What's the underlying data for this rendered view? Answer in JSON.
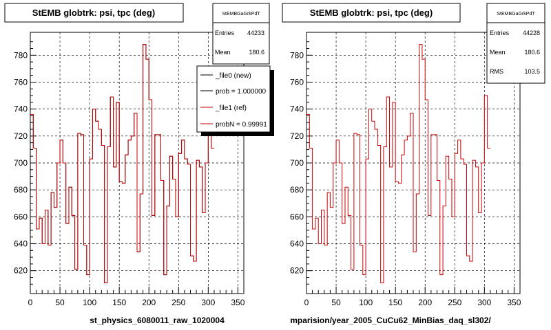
{
  "colors": {
    "background": "#ffffff",
    "frame": "#000000",
    "grid": "#000000",
    "series_new": "#000000",
    "series_ref": "#cc0000"
  },
  "left_panel": {
    "title": "StEMB globtrk: psi, tpc (deg)",
    "stats": {
      "name": "StEMBGaGrkPdT",
      "entries_label": "Entries",
      "entries_value": "44233",
      "mean_label": "Mean",
      "mean_value": "180.6"
    },
    "legend": {
      "entries": [
        "_file0 (new)",
        "prob = 1.000000",
        "_file1 (ref)",
        "probN = 0.99991"
      ]
    },
    "xlabel": "st_physics_6080011_raw_1020004"
  },
  "right_panel": {
    "title": "StEMB globtrk: psi, tpc (deg)",
    "stats": {
      "name": "StEMBGaGrkPdT",
      "entries_label": "Entries",
      "entries_value": "44228",
      "mean_label": "Mean",
      "mean_value": "180.6",
      "rms_label": "RMS",
      "rms_value": "103.5"
    },
    "xlabel": "mparision/year_2005_CuCu62_MinBias_daq_sl302/"
  },
  "chart_data": [
    {
      "type": "histogram",
      "title": "StEMB globtrk: psi, tpc (deg)",
      "xlabel": "st_physics_6080011_raw_1020004",
      "xlim": [
        0,
        360
      ],
      "ylim": [
        603,
        797
      ],
      "x_ticks": [
        0,
        50,
        100,
        150,
        200,
        250,
        300,
        350
      ],
      "y_ticks": [
        620,
        640,
        660,
        680,
        700,
        720,
        740,
        760,
        780
      ],
      "grid": true,
      "bin_width": 5,
      "legend_position": "top-right",
      "series": [
        {
          "name": "_file0 (new)",
          "values": [
            736,
            711,
            651,
            659,
            640,
            665,
            639,
            678,
            667,
            700,
            717,
            700,
            655,
            682,
            661,
            621,
            722,
            721,
            639,
            617,
            703,
            740,
            731,
            725,
            713,
            611,
            712,
            749,
            697,
            745,
            686,
            685,
            706,
            717,
            720,
            737,
            634,
            677,
            788,
            777,
            747,
            661,
            721,
            721,
            687,
            617,
            668,
            705,
            688,
            660,
            707,
            717,
            703,
            699,
            631,
            627,
            702,
            697,
            663,
            700,
            750,
            711
          ]
        },
        {
          "name": "_file1 (ref)",
          "values": [
            736,
            711,
            651,
            659,
            640,
            665,
            639,
            678,
            667,
            700,
            717,
            700,
            655,
            682,
            661,
            621,
            722,
            721,
            639,
            617,
            703,
            740,
            731,
            725,
            713,
            611,
            712,
            749,
            697,
            745,
            686,
            685,
            706,
            717,
            720,
            737,
            634,
            677,
            788,
            777,
            747,
            661,
            721,
            721,
            687,
            617,
            668,
            705,
            688,
            660,
            707,
            717,
            703,
            699,
            631,
            627,
            702,
            697,
            663,
            700,
            750,
            711
          ]
        }
      ]
    },
    {
      "type": "histogram",
      "title": "StEMB globtrk: psi, tpc (deg)",
      "xlabel": "mparision/year_2005_CuCu62_MinBias_daq_sl302/",
      "xlim": [
        0,
        360
      ],
      "ylim": [
        603,
        797
      ],
      "x_ticks": [
        0,
        50,
        100,
        150,
        200,
        250,
        300,
        350
      ],
      "y_ticks": [
        620,
        640,
        660,
        680,
        700,
        720,
        740,
        760,
        780
      ],
      "grid": true,
      "bin_width": 5,
      "series": [
        {
          "name": "_file1 (ref)",
          "values": [
            736,
            711,
            651,
            659,
            640,
            665,
            639,
            678,
            667,
            700,
            717,
            700,
            655,
            682,
            661,
            621,
            722,
            721,
            639,
            617,
            703,
            740,
            731,
            725,
            713,
            611,
            712,
            749,
            697,
            745,
            686,
            685,
            706,
            717,
            720,
            737,
            634,
            677,
            788,
            777,
            747,
            661,
            721,
            721,
            687,
            617,
            668,
            705,
            688,
            660,
            707,
            717,
            703,
            699,
            631,
            627,
            702,
            697,
            663,
            700,
            750,
            711
          ]
        }
      ]
    }
  ]
}
